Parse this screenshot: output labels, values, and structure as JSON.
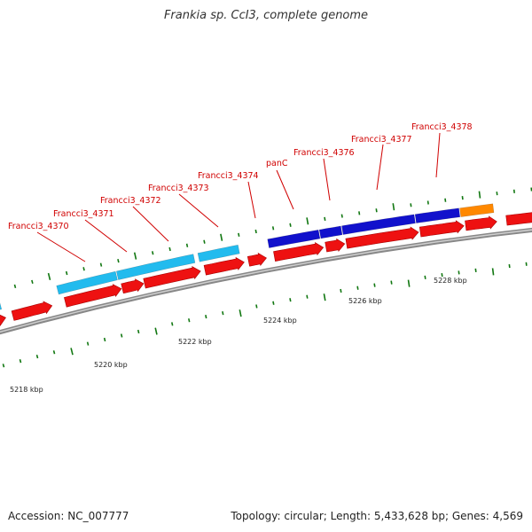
{
  "title": "Frankia sp. CcI3, complete genome",
  "footer": {
    "accession": "Accession: NC_007777",
    "summary": "Topology: circular; Length: 5,433,628 bp; Genes: 4,569"
  },
  "colors": {
    "gene_label": "#d00000",
    "cds_arrow": "#ee1111",
    "light_blue": "#22bbee",
    "dark_blue": "#1111cc",
    "orange": "#ff8800",
    "tick": "#117711",
    "backbone": "#888888"
  },
  "gene_labels": [
    {
      "text": "Francci3_4370"
    },
    {
      "text": "Francci3_4371"
    },
    {
      "text": "Francci3_4372"
    },
    {
      "text": "Francci3_4373"
    },
    {
      "text": "Francci3_4374"
    },
    {
      "text": "panC"
    },
    {
      "text": "Francci3_4376"
    },
    {
      "text": "Francci3_4377"
    },
    {
      "text": "Francci3_4378"
    }
  ],
  "kbp_labels": [
    {
      "text": "5218 kbp"
    },
    {
      "text": "5220 kbp"
    },
    {
      "text": "5222 kbp"
    },
    {
      "text": "5224 kbp"
    },
    {
      "text": "5226 kbp"
    },
    {
      "text": "5228 kbp"
    }
  ]
}
